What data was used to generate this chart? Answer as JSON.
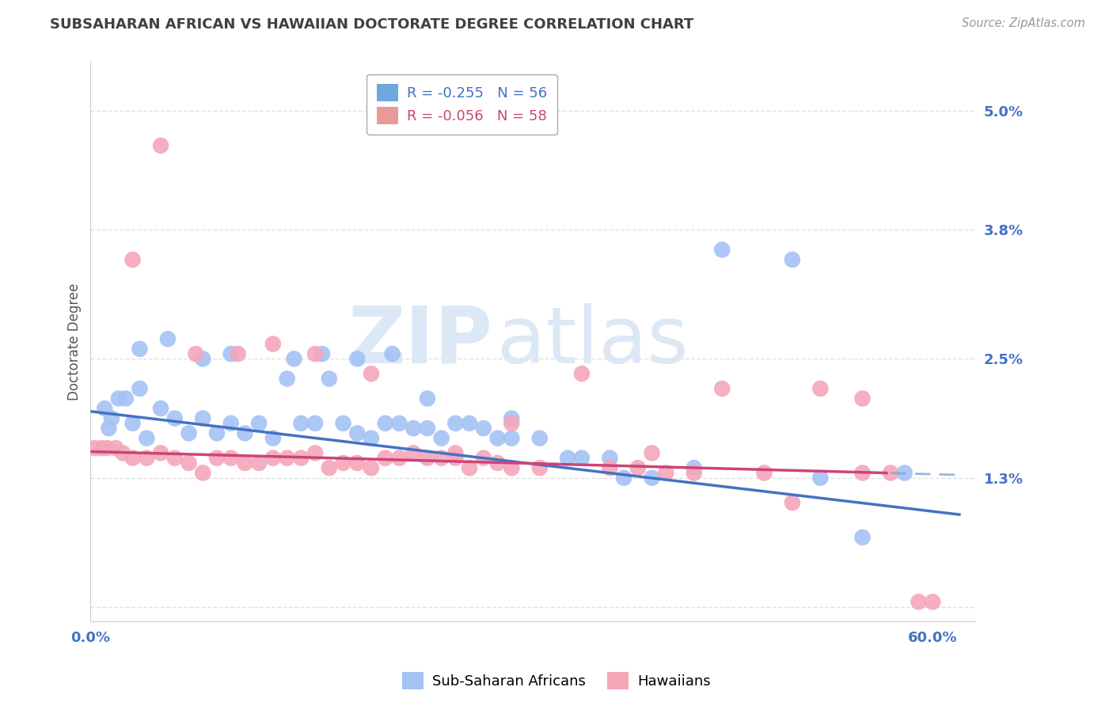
{
  "title": "SUBSAHARAN AFRICAN VS HAWAIIAN DOCTORATE DEGREE CORRELATION CHART",
  "source": "Source: ZipAtlas.com",
  "ylabel": "Doctorate Degree",
  "xlim": [
    0.0,
    63.0
  ],
  "ylim": [
    -0.15,
    5.5
  ],
  "yticks": [
    0.0,
    1.3,
    2.5,
    3.8,
    5.0
  ],
  "ytick_labels": [
    "",
    "1.3%",
    "2.5%",
    "3.8%",
    "5.0%"
  ],
  "xticks": [
    0.0,
    60.0
  ],
  "xtick_labels": [
    "0.0%",
    "60.0%"
  ],
  "grid_color": "#d9d9d9",
  "background_color": "#ffffff",
  "watermark_zip": "ZIP",
  "watermark_atlas": "atlas",
  "legend_label1": "R = -0.255   N = 56",
  "legend_label2": "R = -0.056   N = 58",
  "legend_color1": "#6fa8dc",
  "legend_color2": "#ea9999",
  "line_color1": "#4472c4",
  "line_color2": "#cc4477",
  "line_color_dashed": "#7ba7d4",
  "scatter_color1": "#a4c2f4",
  "scatter_color2": "#f4a7b9",
  "title_color": "#404040",
  "axis_label_color": "#555555",
  "tick_label_color": "#4472c4",
  "subsaharan_x": [
    1.0,
    1.3,
    1.5,
    2.0,
    2.5,
    3.0,
    3.5,
    4.0,
    5.0,
    6.0,
    7.0,
    8.0,
    9.0,
    10.0,
    11.0,
    12.0,
    13.0,
    14.0,
    15.0,
    16.0,
    17.0,
    18.0,
    19.0,
    20.0,
    21.0,
    22.0,
    23.0,
    24.0,
    25.0,
    26.0,
    27.0,
    28.0,
    29.0,
    30.0,
    32.0,
    34.0,
    35.0,
    37.0,
    40.0,
    43.0,
    45.0,
    50.0,
    52.0,
    55.0,
    58.0,
    3.5,
    5.5,
    8.0,
    10.0,
    14.5,
    16.5,
    19.0,
    21.5,
    24.0,
    30.0,
    38.0
  ],
  "subsaharan_y": [
    2.0,
    1.8,
    1.9,
    2.1,
    2.1,
    1.85,
    2.2,
    1.7,
    2.0,
    1.9,
    1.75,
    1.9,
    1.75,
    1.85,
    1.75,
    1.85,
    1.7,
    2.3,
    1.85,
    1.85,
    2.3,
    1.85,
    1.75,
    1.7,
    1.85,
    1.85,
    1.8,
    1.8,
    1.7,
    1.85,
    1.85,
    1.8,
    1.7,
    1.7,
    1.7,
    1.5,
    1.5,
    1.5,
    1.3,
    1.4,
    3.6,
    3.5,
    1.3,
    0.7,
    1.35,
    2.6,
    2.7,
    2.5,
    2.55,
    2.5,
    2.55,
    2.5,
    2.55,
    2.1,
    1.9,
    1.3
  ],
  "hawaiian_x": [
    0.3,
    0.8,
    1.2,
    1.8,
    2.3,
    3.0,
    4.0,
    5.0,
    6.0,
    7.0,
    8.0,
    9.0,
    10.0,
    11.0,
    12.0,
    13.0,
    14.0,
    15.0,
    16.0,
    17.0,
    18.0,
    19.0,
    20.0,
    21.0,
    22.0,
    23.0,
    24.0,
    25.0,
    26.0,
    27.0,
    28.0,
    29.0,
    30.0,
    32.0,
    35.0,
    37.0,
    39.0,
    41.0,
    43.0,
    45.0,
    48.0,
    52.0,
    55.0,
    57.0,
    60.0,
    3.0,
    5.0,
    7.5,
    10.5,
    13.0,
    16.0,
    20.0,
    26.0,
    30.0,
    40.0,
    50.0,
    55.0,
    59.0
  ],
  "hawaiian_y": [
    1.6,
    1.6,
    1.6,
    1.6,
    1.55,
    1.5,
    1.5,
    1.55,
    1.5,
    1.45,
    1.35,
    1.5,
    1.5,
    1.45,
    1.45,
    1.5,
    1.5,
    1.5,
    1.55,
    1.4,
    1.45,
    1.45,
    1.4,
    1.5,
    1.5,
    1.55,
    1.5,
    1.5,
    1.5,
    1.4,
    1.5,
    1.45,
    1.4,
    1.4,
    2.35,
    1.4,
    1.4,
    1.35,
    1.35,
    2.2,
    1.35,
    2.2,
    1.35,
    1.35,
    0.05,
    3.5,
    4.65,
    2.55,
    2.55,
    2.65,
    2.55,
    2.35,
    1.55,
    1.85,
    1.55,
    1.05,
    2.1,
    0.05
  ]
}
